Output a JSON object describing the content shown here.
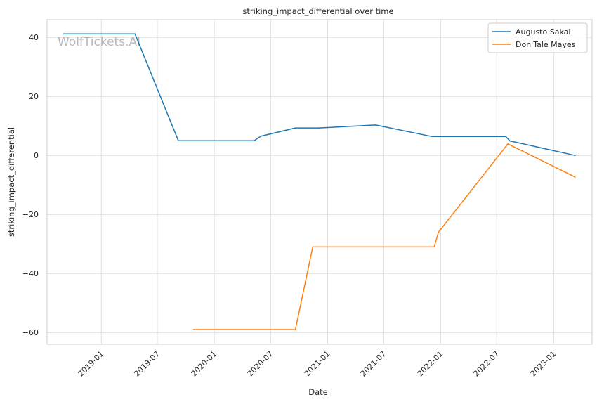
{
  "chart_data": {
    "type": "line",
    "title": "striking_impact_differential over time",
    "xlabel": "Date",
    "ylabel": "striking_impact_differential",
    "watermark": "WolfTickets.AI",
    "x_ticks": [
      "2019-01",
      "2019-07",
      "2020-01",
      "2020-07",
      "2021-01",
      "2021-07",
      "2022-01",
      "2022-07",
      "2023-01"
    ],
    "y_ticks": [
      -60,
      -40,
      -20,
      0,
      20,
      40
    ],
    "xlim": [
      "2018-07-10",
      "2023-05-05"
    ],
    "ylim": [
      -64,
      46
    ],
    "grid": true,
    "legend_position": "top-right",
    "series": [
      {
        "name": "Augusto Sakai",
        "color": "#1f77b4",
        "points": [
          [
            "2018-09-01",
            41.2
          ],
          [
            "2019-04-20",
            41.2
          ],
          [
            "2019-09-07",
            5.0
          ],
          [
            "2020-05-09",
            5.0
          ],
          [
            "2020-05-30",
            6.5
          ],
          [
            "2020-09-19",
            9.3
          ],
          [
            "2020-12-05",
            9.3
          ],
          [
            "2021-06-05",
            10.3
          ],
          [
            "2021-12-04",
            6.4
          ],
          [
            "2022-07-30",
            6.4
          ],
          [
            "2022-08-13",
            4.9
          ],
          [
            "2023-03-11",
            0.0
          ]
        ]
      },
      {
        "name": "Don'Tale Mayes",
        "color": "#ff7f0e",
        "points": [
          [
            "2019-10-26",
            -59.0
          ],
          [
            "2020-09-19",
            -59.0
          ],
          [
            "2020-11-14",
            -31.0
          ],
          [
            "2021-12-11",
            -31.0
          ],
          [
            "2021-12-25",
            -26.0
          ],
          [
            "2022-08-06",
            3.9
          ],
          [
            "2023-03-11",
            -7.3
          ]
        ]
      }
    ]
  }
}
